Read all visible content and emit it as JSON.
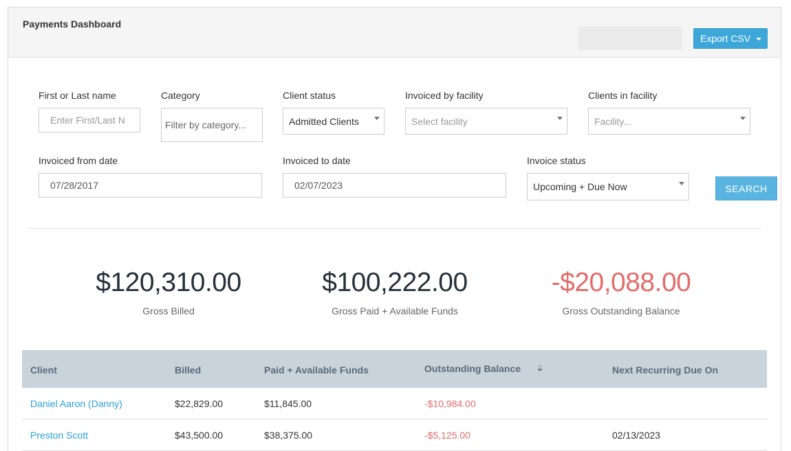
{
  "header": {
    "title": "Payments Dashboard",
    "export_label": "Export CSV"
  },
  "filters": {
    "name": {
      "label": "First or Last name",
      "placeholder": "Enter First/Last N"
    },
    "category": {
      "label": "Category",
      "placeholder": "Filter by category..."
    },
    "client_status": {
      "label": "Client status",
      "value": "Admitted Clients"
    },
    "invoiced_by_facility": {
      "label": "Invoiced by facility",
      "placeholder": "Select facility"
    },
    "clients_in_facility": {
      "label": "Clients in facility",
      "placeholder": "Facility..."
    },
    "from_date": {
      "label": "Invoiced from date",
      "value": "07/28/2017"
    },
    "to_date": {
      "label": "Invoiced to date",
      "value": "02/07/2023"
    },
    "invoice_status": {
      "label": "Invoice status",
      "value": "Upcoming + Due Now"
    },
    "search_label": "SEARCH"
  },
  "summary": {
    "gross_billed": {
      "amount": "$120,310.00",
      "label": "Gross Billed"
    },
    "gross_paid": {
      "amount": "$100,222.00",
      "label": "Gross Paid + Available Funds"
    },
    "gross_outstanding": {
      "amount": "-$20,088.00",
      "label": "Gross Outstanding Balance"
    }
  },
  "table": {
    "columns": [
      "Client",
      "Billed",
      "Paid + Available Funds",
      "Outstanding Balance",
      "Next Recurring Due On"
    ],
    "rows": [
      {
        "client": "Daniel Aaron (Danny)",
        "billed": "$22,829.00",
        "paid": "$11,845.00",
        "outstanding": "-$10,984.00",
        "next_due": ""
      },
      {
        "client": "Preston Scott",
        "billed": "$43,500.00",
        "paid": "$38,375.00",
        "outstanding": "-$5,125.00",
        "next_due": "02/13/2023"
      }
    ]
  },
  "colors": {
    "accent": "#3ea7d9",
    "negative": "#e26c6a",
    "link": "#2a9fd6",
    "table_header": "#c9d3db"
  }
}
